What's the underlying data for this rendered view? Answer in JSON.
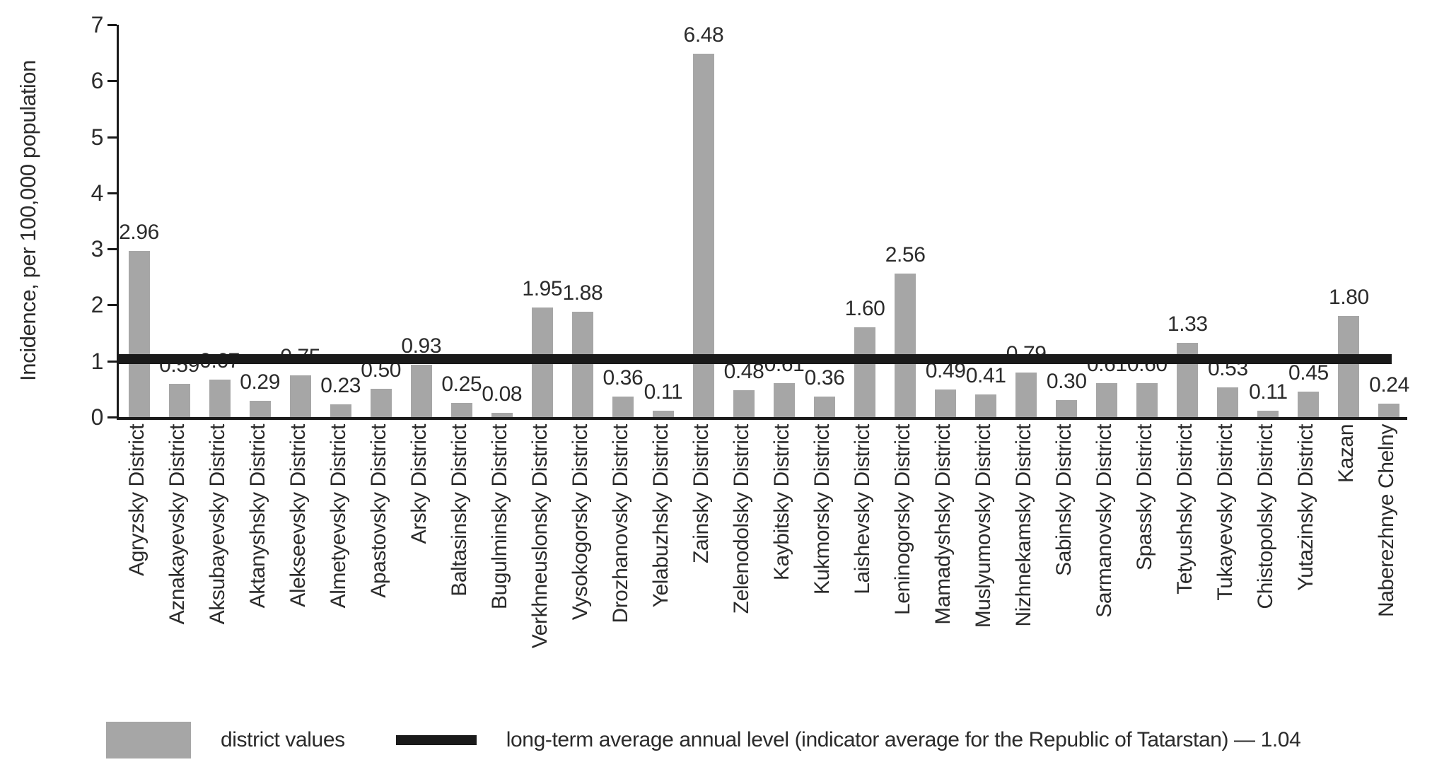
{
  "chart_data": {
    "type": "bar",
    "title": "",
    "xlabel": "",
    "ylabel": "Incidence, per 100,000 population",
    "ylim": [
      0,
      7
    ],
    "yticks": [
      0,
      1,
      2,
      3,
      4,
      5,
      6,
      7
    ],
    "grid": false,
    "bar_color": "#a6a6a6",
    "line_color": "#1a1a1a",
    "categories": [
      "Agryzsky District",
      "Aznakayevsky District",
      "Aksubayevsky District",
      "Aktanyshsky District",
      "Alekseevsky District",
      "Almetyevsky District",
      "Apastovsky District",
      "Arsky District",
      "Baltasinsky District",
      "Bugulminsky District",
      "Verkhneuslonsky District",
      "Vysokogorsky District",
      "Drozhanovsky District",
      "Yelabuzhsky District",
      "Zainsky District",
      "Zelenodolsky District",
      "Kaybitsky District",
      "Kukmorsky District",
      "Laishevsky District",
      "Leninogorsky District",
      "Mamadyshsky District",
      "Muslyumovsky District",
      "Nizhnekamsky District",
      "Sabinsky District",
      "Sarmanovsky District",
      "Spassky District",
      "Tetyushsky District",
      "Tukayevsky District",
      "Chistopolsky District",
      "Yutazinsky District",
      "Kazan",
      "Naberezhnye Chelny"
    ],
    "values": [
      2.96,
      0.59,
      0.67,
      0.29,
      0.75,
      0.23,
      0.5,
      0.93,
      0.25,
      0.08,
      1.95,
      1.88,
      0.36,
      0.11,
      6.48,
      0.48,
      0.61,
      0.36,
      1.6,
      2.56,
      0.49,
      0.41,
      0.79,
      0.3,
      0.61,
      0.6,
      1.33,
      0.53,
      0.11,
      0.45,
      1.8,
      0.24
    ],
    "average_line": {
      "value": 1.04,
      "label": "1.04"
    },
    "legend": {
      "position": "bottom",
      "bar_label": "district values",
      "line_label": "long-term average annual level (indicator average for the Republic of Tatarstan) — 1.04"
    }
  }
}
